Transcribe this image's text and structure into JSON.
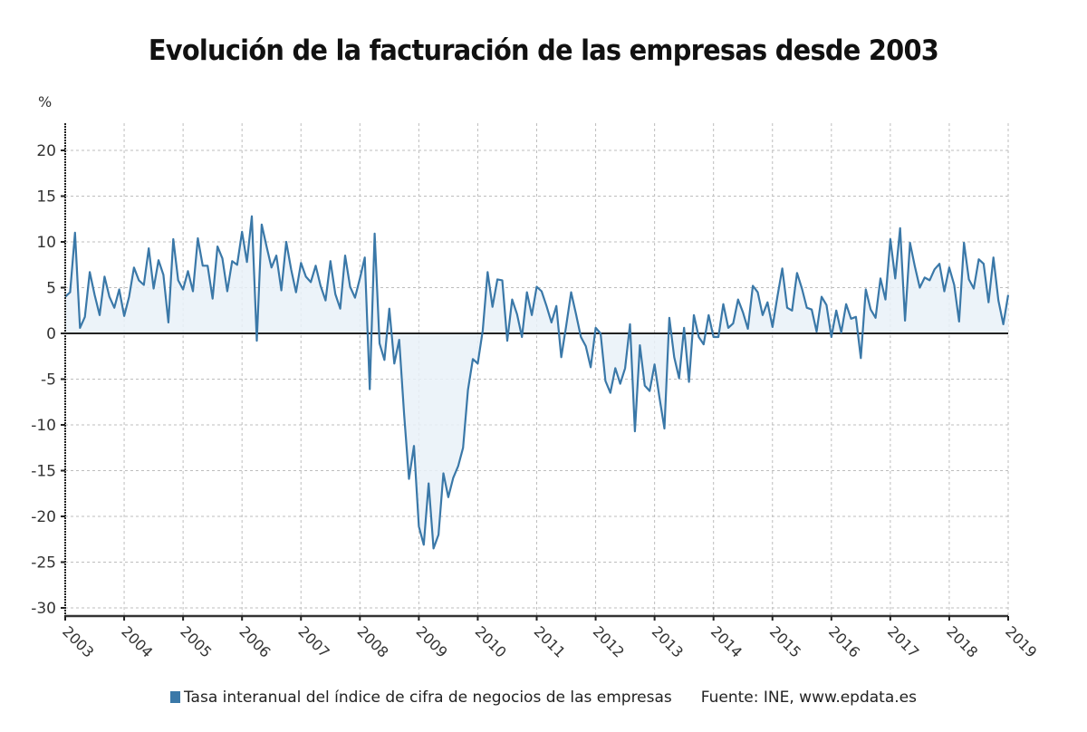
{
  "chart_data": {
    "type": "area",
    "title": "Evolución de la facturación de las empresas desde 2003",
    "ylabel": "%",
    "xlabel": "",
    "ylim": [
      -31,
      23
    ],
    "yticks": [
      20,
      15,
      10,
      5,
      0,
      -5,
      -10,
      -15,
      -20,
      -25,
      -30
    ],
    "xlim": [
      2003,
      2019
    ],
    "xticks": [
      "2003",
      "2004",
      "2005",
      "2006",
      "2007",
      "2008",
      "2009",
      "2010",
      "2011",
      "2012",
      "2013",
      "2014",
      "2015",
      "2016",
      "2017",
      "2018",
      "2019"
    ],
    "grid": true,
    "frequency": "monthly",
    "start": "2003-01",
    "legend_position": "bottom",
    "series": [
      {
        "name": "Tasa interanual del índice de cifra de negocios de las empresas",
        "color": "#3a78a8",
        "fill": "#e9f1f8",
        "values": [
          4.0,
          4.5,
          11.0,
          0.6,
          1.8,
          6.7,
          4.2,
          2.0,
          6.2,
          4.0,
          2.8,
          4.8,
          1.9,
          4.0,
          7.2,
          5.8,
          5.3,
          9.3,
          4.9,
          8.0,
          6.4,
          1.2,
          10.3,
          5.8,
          4.8,
          6.8,
          4.6,
          10.4,
          7.4,
          7.4,
          3.8,
          9.5,
          8.2,
          4.6,
          7.9,
          7.5,
          11.1,
          7.8,
          12.8,
          -0.8,
          11.9,
          9.5,
          7.2,
          8.5,
          4.7,
          10.0,
          7.0,
          4.5,
          7.7,
          6.2,
          5.6,
          7.4,
          5.2,
          3.6,
          7.9,
          4.3,
          2.7,
          8.5,
          5.1,
          3.9,
          6.0,
          8.3,
          -6.1,
          10.9,
          -1.1,
          -2.9,
          2.7,
          -3.3,
          -0.7,
          -8.8,
          -15.9,
          -12.3,
          -21.1,
          -23.1,
          -16.4,
          -23.5,
          -22.0,
          -15.3,
          -17.9,
          -15.8,
          -14.5,
          -12.5,
          -6.2,
          -2.8,
          -3.3,
          0.3,
          6.7,
          2.9,
          5.9,
          5.8,
          -0.8,
          3.7,
          2.1,
          -0.4,
          4.5,
          2.0,
          5.1,
          4.6,
          3.0,
          1.2,
          3.0,
          -2.6,
          0.8,
          4.5,
          2.1,
          -0.4,
          -1.4,
          -3.7,
          0.6,
          0.0,
          -5.2,
          -6.5,
          -3.8,
          -5.5,
          -3.8,
          1.0,
          -10.7,
          -1.3,
          -5.7,
          -6.3,
          -3.4,
          -7.0,
          -10.4,
          1.7,
          -2.6,
          -4.9,
          0.6,
          -5.3,
          2.0,
          -0.4,
          -1.2,
          2.0,
          -0.4,
          -0.4,
          3.2,
          0.6,
          1.1,
          3.7,
          2.3,
          0.5,
          5.2,
          4.5,
          2.0,
          3.4,
          0.7,
          4.0,
          7.1,
          2.8,
          2.5,
          6.6,
          4.9,
          2.8,
          2.6,
          0.2,
          4.0,
          3.1,
          -0.4,
          2.5,
          0.1,
          3.2,
          1.6,
          1.8,
          -2.7,
          4.8,
          2.6,
          1.7,
          6.0,
          3.7,
          10.3,
          6.0,
          11.5,
          1.4,
          9.9,
          7.3,
          5.0,
          6.1,
          5.8,
          7.0,
          7.6,
          4.6,
          7.2,
          5.3,
          1.3,
          9.9,
          5.9,
          4.9,
          8.1,
          7.6,
          3.4,
          8.3,
          3.6,
          1.0,
          4.2
        ]
      }
    ],
    "source": "Fuente: INE, www.epdata.es"
  },
  "legend": {
    "series_label": "Tasa interanual del índice de cifra de negocios de las empresas",
    "swatch_color": "#3a78a8",
    "source": "Fuente: INE, www.epdata.es"
  }
}
